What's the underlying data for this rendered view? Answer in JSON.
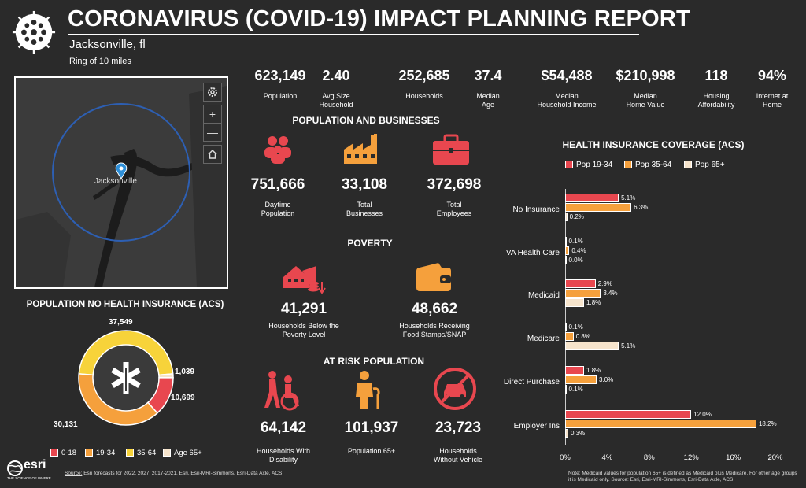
{
  "header": {
    "title": "CORONAVIRUS (COVID-19) IMPACT PLANNING REPORT",
    "location": "Jacksonville, fl",
    "ring": "Ring of 10 miles"
  },
  "map": {
    "city_label": "Jacksonville",
    "settings_icon": "gear-icon",
    "zoom_in": "+",
    "zoom_out": "—",
    "home_icon": "home-icon"
  },
  "stats": [
    {
      "value": "623,149",
      "label": "Population"
    },
    {
      "value": "2.40",
      "label": "Avg Size\nHousehold"
    },
    {
      "value": "252,685",
      "label": "Households"
    },
    {
      "value": "37.4",
      "label": "Median\nAge"
    },
    {
      "value": "$54,488",
      "label": "Median\nHousehold Income"
    },
    {
      "value": "$210,998",
      "label": "Median\nHome Value"
    },
    {
      "value": "118",
      "label": "Housing\nAffordability"
    },
    {
      "value": "94%",
      "label": "Internet at\nHome"
    }
  ],
  "pop_business": {
    "title": "POPULATION AND BUSINESSES",
    "items": [
      {
        "value": "751,666",
        "label": "Daytime\nPopulation",
        "icon": "people-icon"
      },
      {
        "value": "33,108",
        "label": "Total\nBusinesses",
        "icon": "factory-icon"
      },
      {
        "value": "372,698",
        "label": "Total\nEmployees",
        "icon": "briefcase-icon"
      }
    ]
  },
  "poverty": {
    "title": "POVERTY",
    "items": [
      {
        "value": "41,291",
        "label": "Households Below the\nPoverty Level",
        "icon": "house-coins-icon"
      },
      {
        "value": "48,662",
        "label": "Households Receiving\nFood Stamps/SNAP",
        "icon": "wallet-icon"
      }
    ]
  },
  "at_risk": {
    "title": "AT RISK POPULATION",
    "items": [
      {
        "value": "64,142",
        "label": "Households With\nDisability",
        "icon": "wheelchair-icon"
      },
      {
        "value": "101,937",
        "label": "Population 65+",
        "icon": "elderly-icon"
      },
      {
        "value": "23,723",
        "label": "Households\nWithout Vehicle",
        "icon": "no-car-icon"
      }
    ]
  },
  "donut": {
    "title": "POPULATION NO HEALTH INSURANCE (ACS)",
    "segments": [
      {
        "name": "0-18",
        "value": 10699,
        "label": "10,699",
        "color": "#e8474f"
      },
      {
        "name": "19-34",
        "value": 30131,
        "label": "30,131",
        "color": "#f5a03c"
      },
      {
        "name": "35-64",
        "value": 37549,
        "label": "37,549",
        "color": "#f7d33a"
      },
      {
        "name": "Age 65+",
        "value": 1039,
        "label": "1,039",
        "color": "#f6e4cc"
      }
    ]
  },
  "chart_data": {
    "type": "bar",
    "title": "HEALTH INSURANCE COVERAGE (ACS)",
    "categories": [
      "No Insurance",
      "VA Health Care",
      "Medicaid",
      "Medicare",
      "Direct Purchase",
      "Employer Ins"
    ],
    "series": [
      {
        "name": "Pop 19-34",
        "color": "#e8474f",
        "values": [
          5.1,
          0.1,
          2.9,
          0.1,
          1.8,
          12.0
        ],
        "labels": [
          "5.1%",
          "0.1%",
          "2.9%",
          "0.1%",
          "1.8%",
          "12.0%"
        ]
      },
      {
        "name": "Pop 35-64",
        "color": "#f5a03c",
        "values": [
          6.3,
          0.4,
          3.4,
          0.8,
          3.0,
          18.2
        ],
        "labels": [
          "6.3%",
          "0.4%",
          "3.4%",
          "0.8%",
          "3.0%",
          "18.2%"
        ]
      },
      {
        "name": "Pop 65+",
        "color": "#f6e4cc",
        "values": [
          0.2,
          0.0,
          1.8,
          5.1,
          0.1,
          0.3
        ],
        "labels": [
          "0.2%",
          "0.0%",
          "1.8%",
          "5.1%",
          "0.1%",
          "0.3%"
        ]
      }
    ],
    "xlim": [
      0,
      20
    ],
    "ticks": [
      "0%",
      "4%",
      "8%",
      "12%",
      "16%",
      "20%"
    ],
    "orientation": "horizontal"
  },
  "footer": {
    "esri_brand": "esri",
    "esri_tagline": "THE SCIENCE OF WHERE",
    "source_label": "Source:",
    "source_text": "Esri forecasts for 2022, 2027, 2017-2021, Esri, Esri-MRI-Simmons, Esri-Data Axle, ACS",
    "note_line1": "Note: Medicaid values for population 65+ is defined as Medicaid plus Medicare. For other age groups",
    "note_line2": "it is Medicaid only.  Source: Esri, Esri-MRI-Simmons, Esri-Data Axle, ACS"
  }
}
